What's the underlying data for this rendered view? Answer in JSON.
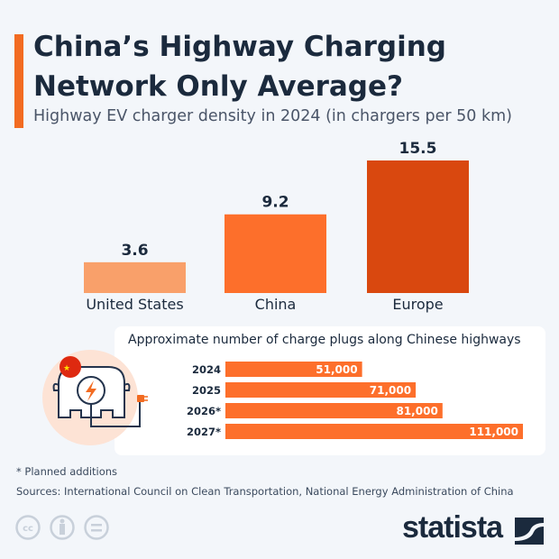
{
  "title_line1": "China’s Highway Charging",
  "title_line2": "Network Only Average?",
  "subtitle": "Highway EV charger density in 2024 (in chargers per 50 km)",
  "chart_data": [
    {
      "type": "bar",
      "categories": [
        "United States",
        "China",
        "Europe"
      ],
      "values": [
        3.6,
        9.2,
        15.5
      ],
      "value_labels": [
        "3.6",
        "9.2",
        "15.5"
      ],
      "colors": [
        "#f9a06a",
        "#fd6f2b",
        "#d9480f"
      ],
      "ylim": [
        0,
        15.5
      ],
      "grid": false
    },
    {
      "type": "bar",
      "orientation": "horizontal",
      "title": "Approximate number of charge plugs along Chinese highways",
      "categories": [
        "2024",
        "2025",
        "2026*",
        "2027*"
      ],
      "values": [
        51000,
        71000,
        81000,
        111000
      ],
      "value_labels": [
        "51,000",
        "71,000",
        "81,000",
        "111,000"
      ],
      "color": "#fd6f2b",
      "grid": false
    }
  ],
  "footnote": "* Planned additions",
  "sources": "Sources: International Council on Clean Transportation, National Energy Administration of China",
  "brand": "statista",
  "license_icons": [
    "cc-icon",
    "attribution-icon",
    "no-derivatives-icon"
  ]
}
